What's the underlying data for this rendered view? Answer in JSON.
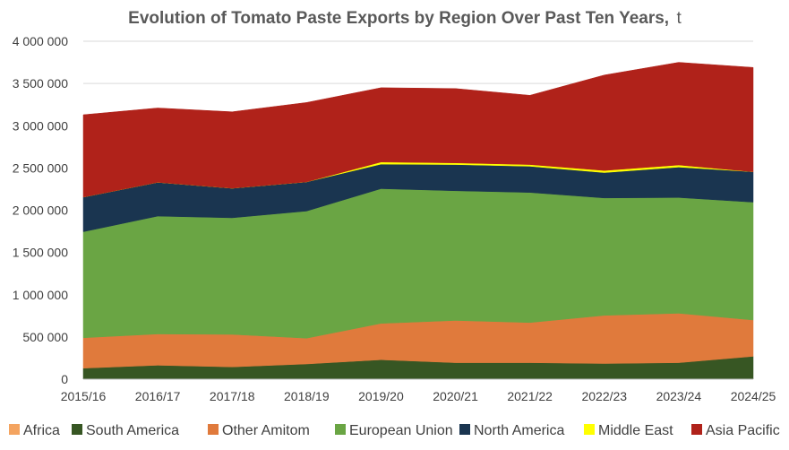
{
  "chart_data": {
    "type": "area",
    "stacked": true,
    "title": "Evolution of Tomato Paste Exports by Region Over Past Ten Years,",
    "unit": "t",
    "xlabel": "",
    "ylabel": "",
    "ylim": [
      0,
      4000000
    ],
    "ytick_step": 500000,
    "ytick_labels": [
      "0",
      "500 000",
      "1 000 000",
      "1 500 000",
      "2 000 000",
      "2 500 000",
      "3 000 000",
      "3 500 000",
      "4 000 000"
    ],
    "grid": true,
    "legend_position": "bottom",
    "categories": [
      "2015/16",
      "2016/17",
      "2017/18",
      "2018/19",
      "2019/20",
      "2020/21",
      "2021/22",
      "2022/23",
      "2023/24",
      "2024/25"
    ],
    "series": [
      {
        "name": "Africa",
        "color": "#f4a460",
        "values": [
          0,
          0,
          0,
          0,
          0,
          0,
          0,
          0,
          0,
          0
        ]
      },
      {
        "name": "South America",
        "color": "#375623",
        "values": [
          130000,
          165000,
          145000,
          180000,
          230000,
          195000,
          195000,
          185000,
          195000,
          270000
        ]
      },
      {
        "name": "Other Amitom",
        "color": "#e07a3c",
        "values": [
          360000,
          370000,
          385000,
          305000,
          430000,
          500000,
          475000,
          570000,
          585000,
          430000
        ]
      },
      {
        "name": "European Union",
        "color": "#6aa544",
        "values": [
          1255000,
          1395000,
          1380000,
          1505000,
          1595000,
          1535000,
          1540000,
          1390000,
          1370000,
          1395000
        ]
      },
      {
        "name": "North America",
        "color": "#1a3550",
        "values": [
          410000,
          400000,
          350000,
          345000,
          290000,
          310000,
          310000,
          300000,
          360000,
          360000
        ]
      },
      {
        "name": "Middle East",
        "color": "#ffff00",
        "values": [
          0,
          0,
          0,
          0,
          25000,
          20000,
          20000,
          25000,
          25000,
          0
        ]
      },
      {
        "name": "Asia Pacific",
        "color": "#b0221a",
        "values": [
          975000,
          880000,
          905000,
          940000,
          880000,
          880000,
          820000,
          1130000,
          1215000,
          1235000
        ]
      }
    ]
  }
}
